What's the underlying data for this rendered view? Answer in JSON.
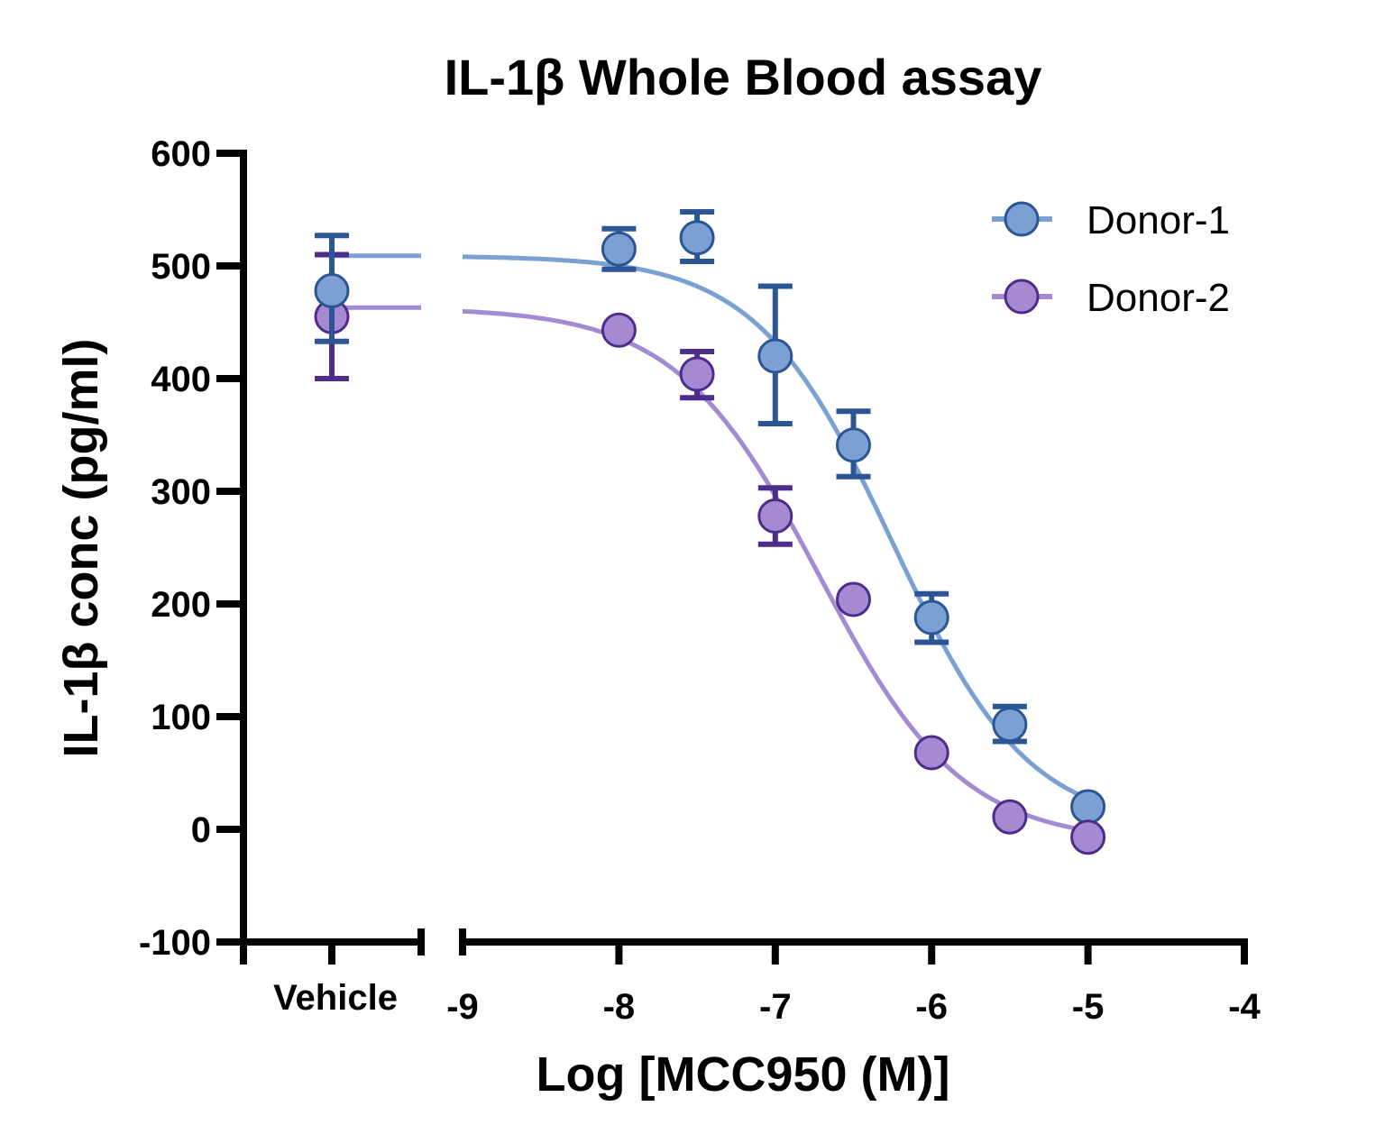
{
  "chart_data": {
    "type": "scatter",
    "title": "IL-1β Whole Blood assay",
    "xlabel": "Log [MCC950 (M)]",
    "ylabel": "IL-1β conc (pg/ml)",
    "xlim": [
      -9,
      -4
    ],
    "ylim": [
      -100,
      600
    ],
    "x_ticks": [
      -9,
      -8,
      -7,
      -6,
      -5,
      -4
    ],
    "x_tick_labels": [
      "-9",
      "-8",
      "-7",
      "-6",
      "-5",
      "-4"
    ],
    "y_ticks": [
      -100,
      0,
      100,
      200,
      300,
      400,
      500,
      600
    ],
    "y_tick_labels": [
      "-100",
      "0",
      "100",
      "200",
      "300",
      "400",
      "500",
      "600"
    ],
    "vehicle_label": "Vehicle",
    "grid": false,
    "legend_position": "top-right",
    "series": [
      {
        "name": "Donor-1",
        "fill": "#7ba1d3",
        "stroke": "#2b5595",
        "line_color": "#7ba1d3",
        "vehicle": {
          "y": 478,
          "err_low": 433,
          "err_high": 527
        },
        "x": [
          -8,
          -7.5,
          -7,
          -6.5,
          -6,
          -5.5,
          -5
        ],
        "y": [
          515,
          525,
          420,
          341,
          188,
          93,
          20
        ],
        "err_low": [
          497,
          504,
          360,
          313,
          166,
          78,
          null
        ],
        "err_high": [
          533,
          548,
          482,
          371,
          209,
          109,
          null
        ],
        "fit": {
          "top": 509,
          "bottom": 0,
          "log_ic50": -6.25,
          "hill": 1.0
        }
      },
      {
        "name": "Donor-2",
        "fill": "#a58ad2",
        "stroke": "#4e2c8c",
        "line_color": "#a58ad2",
        "vehicle": {
          "y": 455,
          "err_low": 400,
          "err_high": 510
        },
        "x": [
          -8,
          -7.5,
          -7,
          -6.5,
          -6,
          -5.5,
          -5
        ],
        "y": [
          443,
          404,
          278,
          204,
          68,
          11,
          -7
        ],
        "err_low": [
          null,
          383,
          253,
          null,
          null,
          null,
          null
        ],
        "err_high": [
          null,
          424,
          303,
          null,
          null,
          null,
          null
        ],
        "fit": {
          "top": 463,
          "bottom": -12,
          "log_ic50": -6.72,
          "hill": 0.95
        }
      }
    ]
  }
}
